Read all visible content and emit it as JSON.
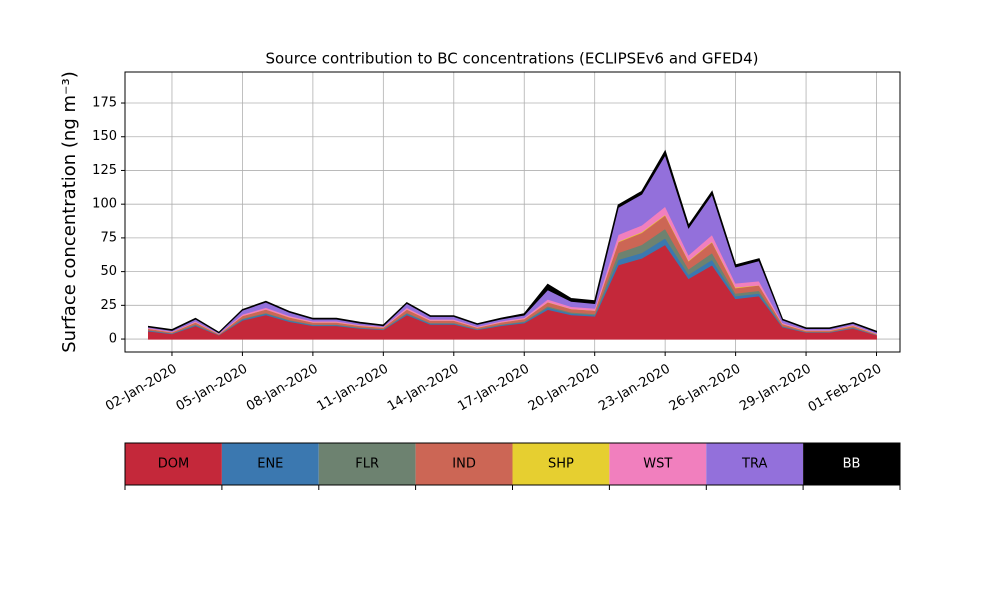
{
  "chart_data": {
    "type": "stacked_area",
    "title": "Source contribution to BC concentrations (ECLIPSEv6 and GFED4)",
    "y_label": "Surface concentration (ng m⁻³)",
    "x": [
      "2020-01-01",
      "2020-01-02",
      "2020-01-03",
      "2020-01-04",
      "2020-01-05",
      "2020-01-06",
      "2020-01-07",
      "2020-01-08",
      "2020-01-09",
      "2020-01-10",
      "2020-01-11",
      "2020-01-12",
      "2020-01-13",
      "2020-01-14",
      "2020-01-15",
      "2020-01-16",
      "2020-01-17",
      "2020-01-18",
      "2020-01-19",
      "2020-01-20",
      "2020-01-21",
      "2020-01-22",
      "2020-01-23",
      "2020-01-24",
      "2020-01-25",
      "2020-01-26",
      "2020-01-27",
      "2020-01-28",
      "2020-01-29",
      "2020-01-30",
      "2020-01-31",
      "2020-02-01"
    ],
    "series": [
      {
        "name": "DOM",
        "color": "#c4283a",
        "values": [
          6,
          4,
          10,
          3,
          14,
          18,
          13,
          10,
          10,
          8,
          7,
          18,
          11,
          11,
          7,
          10,
          12,
          22,
          18,
          17,
          55,
          60,
          70,
          45,
          55,
          30,
          32,
          9,
          5,
          5,
          8,
          3
        ]
      },
      {
        "name": "ENE",
        "color": "#3b78b0",
        "values": [
          0.5,
          0.3,
          0.6,
          0.2,
          0.8,
          1,
          0.8,
          0.6,
          0.6,
          0.5,
          0.4,
          1,
          0.7,
          0.7,
          0.4,
          0.6,
          0.7,
          1.5,
          1.2,
          1,
          4,
          4,
          5,
          3,
          4,
          2,
          2,
          0.5,
          0.3,
          0.3,
          0.5,
          0.2
        ]
      },
      {
        "name": "FLR",
        "color": "#6d8270",
        "values": [
          0.3,
          0.2,
          0.4,
          0.1,
          0.5,
          0.6,
          0.5,
          0.4,
          0.4,
          0.3,
          0.3,
          0.6,
          0.4,
          0.4,
          0.3,
          0.4,
          0.5,
          1,
          0.8,
          0.8,
          5,
          6,
          7,
          4,
          5,
          2,
          2,
          0.3,
          0.2,
          0.2,
          0.3,
          0.1
        ]
      },
      {
        "name": "IND",
        "color": "#cc6655",
        "values": [
          1,
          0.7,
          1.5,
          0.5,
          2,
          2.5,
          2,
          1.5,
          1.5,
          1.2,
          1,
          2.5,
          1.7,
          1.7,
          1,
          1.5,
          1.8,
          3,
          2.5,
          2.5,
          8,
          9,
          10,
          6,
          8,
          4,
          4,
          1.5,
          0.8,
          0.8,
          1.2,
          0.6
        ]
      },
      {
        "name": "SHP",
        "color": "#e6cf30",
        "values": [
          0.1,
          0.1,
          0.1,
          0.1,
          0.1,
          0.1,
          0.1,
          0.1,
          0.1,
          0.1,
          0.1,
          0.1,
          0.1,
          0.1,
          0.1,
          0.1,
          0.1,
          0.1,
          0.1,
          0.1,
          0.5,
          0.5,
          0.5,
          0.5,
          0.5,
          0.5,
          0.1,
          0.1,
          0.1,
          0.1,
          0.1,
          0.1
        ]
      },
      {
        "name": "WST",
        "color": "#f17fbe",
        "values": [
          0.5,
          0.4,
          0.8,
          0.3,
          1,
          1.3,
          1,
          0.8,
          0.8,
          0.6,
          0.5,
          1.3,
          0.9,
          0.9,
          0.6,
          0.8,
          0.9,
          2,
          1.5,
          1.5,
          5,
          5,
          6,
          4,
          5,
          3,
          3,
          0.8,
          0.4,
          0.4,
          0.6,
          0.3
        ]
      },
      {
        "name": "TRA",
        "color": "#9370db",
        "values": [
          0.5,
          0.8,
          1.5,
          0.5,
          3,
          4,
          2.5,
          1.5,
          1.5,
          1.2,
          0.6,
          3,
          2,
          2,
          1.5,
          1.5,
          1.8,
          7,
          4,
          3.5,
          20,
          23,
          38,
          20,
          30,
          12,
          15,
          2,
          1,
          1,
          1,
          1
        ]
      },
      {
        "name": "BB",
        "color": "#000000",
        "values": [
          0.5,
          0.5,
          0.5,
          0.3,
          0.5,
          0.5,
          0.5,
          0.5,
          0.5,
          0.5,
          0.5,
          0.5,
          0.5,
          0.5,
          0.5,
          0.5,
          1,
          4,
          2,
          2,
          2,
          2,
          3,
          2,
          2,
          1.5,
          1.5,
          0.5,
          0.5,
          0.5,
          0.5,
          0.5
        ]
      }
    ],
    "xlim": [
      "2019-12-31",
      "2020-02-02"
    ],
    "xticks": [
      {
        "value": "2020-01-02",
        "label": "02-Jan-2020"
      },
      {
        "value": "2020-01-05",
        "label": "05-Jan-2020"
      },
      {
        "value": "2020-01-08",
        "label": "08-Jan-2020"
      },
      {
        "value": "2020-01-11",
        "label": "11-Jan-2020"
      },
      {
        "value": "2020-01-14",
        "label": "14-Jan-2020"
      },
      {
        "value": "2020-01-17",
        "label": "17-Jan-2020"
      },
      {
        "value": "2020-01-20",
        "label": "20-Jan-2020"
      },
      {
        "value": "2020-01-23",
        "label": "23-Jan-2020"
      },
      {
        "value": "2020-01-26",
        "label": "26-Jan-2020"
      },
      {
        "value": "2020-01-29",
        "label": "29-Jan-2020"
      },
      {
        "value": "2020-02-01",
        "label": "01-Feb-2020"
      }
    ],
    "ylim": [
      -9.6,
      198
    ],
    "yticks": [
      0,
      25,
      50,
      75,
      100,
      125,
      150,
      175
    ],
    "grid": true
  }
}
